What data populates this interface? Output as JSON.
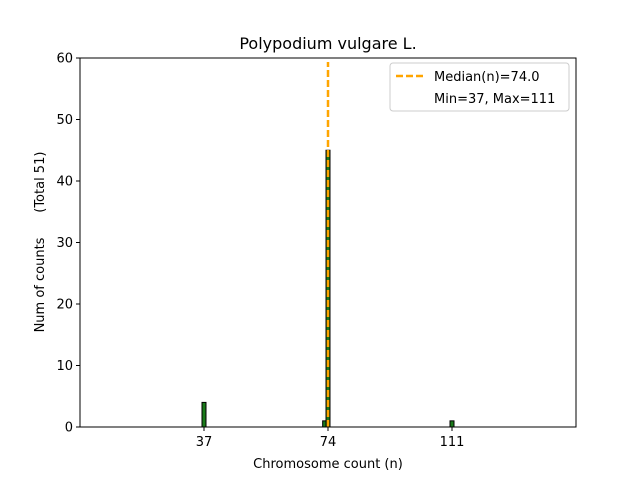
{
  "chart_data": {
    "type": "bar",
    "title": "Polypodium vulgare L.",
    "xlabel": "Chromosome count (n)",
    "ylabel": "Num of counts      (Total 51)",
    "xlim": [
      0,
      148
    ],
    "ylim": [
      0,
      60
    ],
    "xticks": [
      37,
      74,
      111
    ],
    "yticks": [
      0,
      10,
      20,
      30,
      40,
      50,
      60
    ],
    "grid": false,
    "legend_position": "top-right",
    "bar_color": "#1a7a1a",
    "bar_edge_color": "#000000",
    "median_color": "#ffa500",
    "bars": [
      {
        "x": 37,
        "value": 4
      },
      {
        "x": 73,
        "value": 1
      },
      {
        "x": 74,
        "value": 45
      },
      {
        "x": 111,
        "value": 1
      }
    ],
    "median": 74.0,
    "legend": {
      "median_label": "Median(n)=74.0",
      "range_label": "Min=37, Max=111"
    }
  }
}
